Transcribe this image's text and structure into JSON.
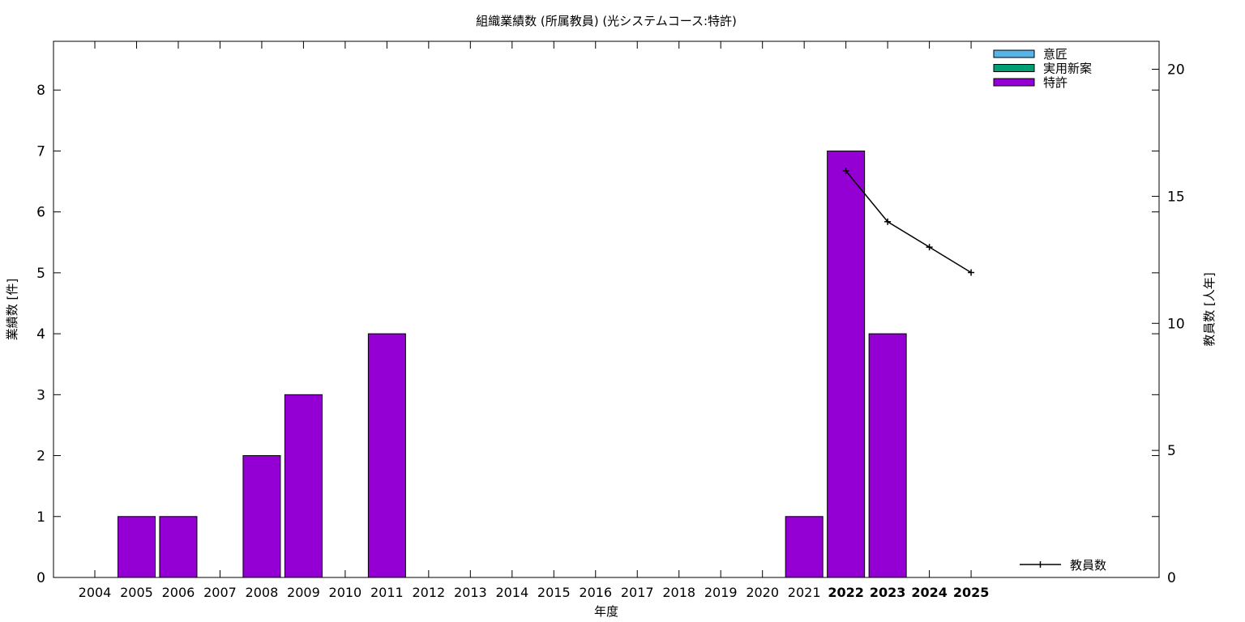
{
  "chart_data": {
    "type": "bar",
    "title": "組織業績数 (所属教員) (光システムコース:特許)",
    "xlabel": "年度",
    "ylabel": "業績数 [件]",
    "y2label": "教員数 [人年]",
    "categories": [
      "2004",
      "2005",
      "2006",
      "2007",
      "2008",
      "2009",
      "2010",
      "2011",
      "2012",
      "2013",
      "2014",
      "2015",
      "2016",
      "2017",
      "2018",
      "2019",
      "2020",
      "2021",
      "2022",
      "2023",
      "2024",
      "2025"
    ],
    "ylim": [
      0,
      8.8
    ],
    "yticks": [
      0,
      1,
      2,
      3,
      4,
      5,
      6,
      7,
      8
    ],
    "y2lim": [
      0,
      21.1
    ],
    "y2ticks": [
      0,
      5,
      10,
      15,
      20
    ],
    "bold_categories": [
      "2022",
      "2023",
      "2024",
      "2025"
    ],
    "series": [
      {
        "name": "意匠",
        "color": "#56b4e9",
        "values": [
          0,
          0,
          0,
          0,
          0,
          0,
          0,
          0,
          0,
          0,
          0,
          0,
          0,
          0,
          0,
          0,
          0,
          0,
          0,
          0,
          0,
          0
        ]
      },
      {
        "name": "実用新案",
        "color": "#009e73",
        "values": [
          0,
          0,
          0,
          0,
          0,
          0,
          0,
          0,
          0,
          0,
          0,
          0,
          0,
          0,
          0,
          0,
          0,
          0,
          0,
          0,
          0,
          0
        ]
      },
      {
        "name": "特許",
        "color": "#9400d3",
        "values": [
          0,
          1,
          1,
          0,
          2,
          3,
          0,
          4,
          0,
          0,
          0,
          0,
          0,
          0,
          0,
          0,
          0,
          1,
          7,
          4,
          0,
          0
        ]
      }
    ],
    "line_series": {
      "name": "教員数",
      "axis": "y2",
      "color": "#000000",
      "points": [
        {
          "x": "2022",
          "y": 16
        },
        {
          "x": "2023",
          "y": 14
        },
        {
          "x": "2024",
          "y": 13
        },
        {
          "x": "2025",
          "y": 12
        }
      ]
    },
    "legend_position": "top-right",
    "line_legend_position": "bottom-right",
    "grid": false
  }
}
